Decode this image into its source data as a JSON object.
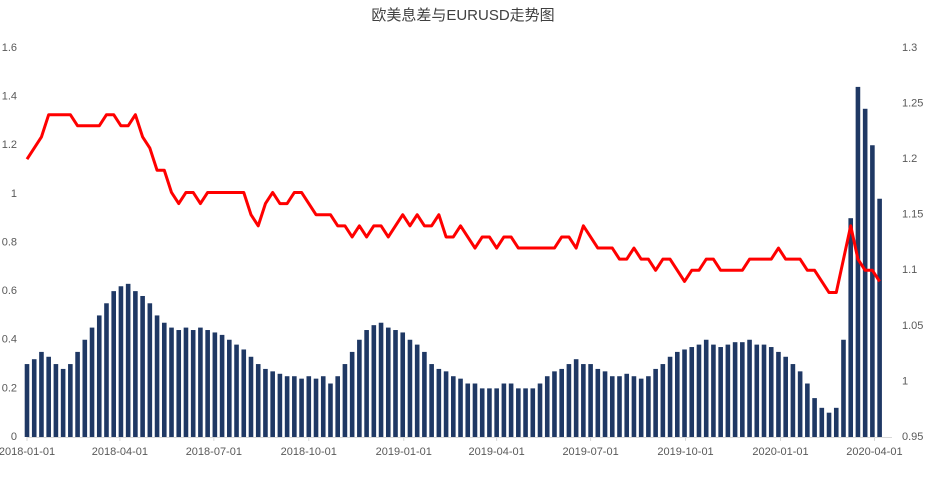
{
  "chart_data": {
    "type": "bar-line",
    "title": "欧美息差与EURUSD走势图",
    "x": [
      "2018-01-01",
      "2018-01-08",
      "2018-01-15",
      "2018-01-22",
      "2018-01-29",
      "2018-02-05",
      "2018-02-12",
      "2018-02-19",
      "2018-02-26",
      "2018-03-05",
      "2018-03-12",
      "2018-03-19",
      "2018-03-26",
      "2018-04-02",
      "2018-04-09",
      "2018-04-16",
      "2018-04-23",
      "2018-04-30",
      "2018-05-07",
      "2018-05-14",
      "2018-05-21",
      "2018-05-28",
      "2018-06-04",
      "2018-06-11",
      "2018-06-18",
      "2018-06-25",
      "2018-07-02",
      "2018-07-09",
      "2018-07-16",
      "2018-07-23",
      "2018-07-30",
      "2018-08-06",
      "2018-08-13",
      "2018-08-20",
      "2018-08-27",
      "2018-09-03",
      "2018-09-10",
      "2018-09-17",
      "2018-09-24",
      "2018-10-01",
      "2018-10-08",
      "2018-10-15",
      "2018-10-22",
      "2018-10-29",
      "2018-11-05",
      "2018-11-12",
      "2018-11-19",
      "2018-11-26",
      "2018-12-03",
      "2018-12-10",
      "2018-12-17",
      "2018-12-24",
      "2018-12-31",
      "2019-01-07",
      "2019-01-14",
      "2019-01-21",
      "2019-01-28",
      "2019-02-04",
      "2019-02-11",
      "2019-02-18",
      "2019-02-25",
      "2019-03-04",
      "2019-03-11",
      "2019-03-18",
      "2019-03-25",
      "2019-04-01",
      "2019-04-08",
      "2019-04-15",
      "2019-04-22",
      "2019-04-29",
      "2019-05-06",
      "2019-05-13",
      "2019-05-20",
      "2019-05-27",
      "2019-06-03",
      "2019-06-10",
      "2019-06-17",
      "2019-06-24",
      "2019-07-01",
      "2019-07-08",
      "2019-07-15",
      "2019-07-22",
      "2019-07-29",
      "2019-08-05",
      "2019-08-12",
      "2019-08-19",
      "2019-08-26",
      "2019-09-02",
      "2019-09-09",
      "2019-09-16",
      "2019-09-23",
      "2019-09-30",
      "2019-10-07",
      "2019-10-14",
      "2019-10-21",
      "2019-10-28",
      "2019-11-04",
      "2019-11-11",
      "2019-11-18",
      "2019-11-25",
      "2019-12-02",
      "2019-12-09",
      "2019-12-16",
      "2019-12-23",
      "2019-12-30",
      "2020-01-06",
      "2020-01-13",
      "2020-01-20",
      "2020-01-27",
      "2020-02-03",
      "2020-02-10",
      "2020-02-17",
      "2020-02-24",
      "2020-03-02",
      "2020-03-09",
      "2020-03-16",
      "2020-03-23",
      "2020-03-30",
      "2020-04-06"
    ],
    "series": [
      {
        "color": "#1f3864",
        "axis": "y",
        "values": [
          0.3,
          0.32,
          0.35,
          0.33,
          0.3,
          0.28,
          0.3,
          0.35,
          0.4,
          0.45,
          0.5,
          0.55,
          0.6,
          0.62,
          0.63,
          0.6,
          0.58,
          0.55,
          0.5,
          0.47,
          0.45,
          0.44,
          0.45,
          0.44,
          0.45,
          0.44,
          0.43,
          0.42,
          0.4,
          0.38,
          0.36,
          0.33,
          0.3,
          0.28,
          0.27,
          0.26,
          0.25,
          0.25,
          0.24,
          0.25,
          0.24,
          0.25,
          0.22,
          0.25,
          0.3,
          0.35,
          0.4,
          0.44,
          0.46,
          0.47,
          0.45,
          0.44,
          0.43,
          0.4,
          0.38,
          0.35,
          0.3,
          0.28,
          0.27,
          0.25,
          0.24,
          0.22,
          0.22,
          0.2,
          0.2,
          0.2,
          0.22,
          0.22,
          0.2,
          0.2,
          0.2,
          0.22,
          0.25,
          0.27,
          0.28,
          0.3,
          0.32,
          0.3,
          0.3,
          0.28,
          0.27,
          0.25,
          0.25,
          0.26,
          0.25,
          0.24,
          0.25,
          0.28,
          0.3,
          0.33,
          0.35,
          0.36,
          0.37,
          0.38,
          0.4,
          0.38,
          0.37,
          0.38,
          0.39,
          0.39,
          0.4,
          0.38,
          0.38,
          0.37,
          0.35,
          0.33,
          0.3,
          0.27,
          0.22,
          0.16,
          0.12,
          0.1,
          0.12,
          0.4,
          0.9,
          1.44,
          1.35,
          1.2,
          0.98
        ]
      },
      {
        "color": "#ff0000",
        "axis": "y2",
        "values": [
          1.2,
          1.21,
          1.22,
          1.24,
          1.24,
          1.24,
          1.24,
          1.23,
          1.23,
          1.23,
          1.23,
          1.24,
          1.24,
          1.23,
          1.23,
          1.24,
          1.22,
          1.21,
          1.19,
          1.19,
          1.17,
          1.16,
          1.17,
          1.17,
          1.16,
          1.17,
          1.17,
          1.17,
          1.17,
          1.17,
          1.17,
          1.15,
          1.14,
          1.16,
          1.17,
          1.16,
          1.16,
          1.17,
          1.17,
          1.16,
          1.15,
          1.15,
          1.15,
          1.14,
          1.14,
          1.13,
          1.14,
          1.13,
          1.14,
          1.14,
          1.13,
          1.14,
          1.15,
          1.14,
          1.15,
          1.14,
          1.14,
          1.15,
          1.13,
          1.13,
          1.14,
          1.13,
          1.12,
          1.13,
          1.13,
          1.12,
          1.13,
          1.13,
          1.12,
          1.12,
          1.12,
          1.12,
          1.12,
          1.12,
          1.13,
          1.13,
          1.12,
          1.14,
          1.13,
          1.12,
          1.12,
          1.12,
          1.11,
          1.11,
          1.12,
          1.11,
          1.11,
          1.1,
          1.11,
          1.11,
          1.1,
          1.09,
          1.1,
          1.1,
          1.11,
          1.11,
          1.1,
          1.1,
          1.1,
          1.1,
          1.11,
          1.11,
          1.11,
          1.11,
          1.12,
          1.11,
          1.11,
          1.11,
          1.1,
          1.1,
          1.09,
          1.08,
          1.08,
          1.11,
          1.14,
          1.11,
          1.1,
          1.1,
          1.09
        ]
      }
    ],
    "xlim": [
      "2018-01-01",
      "2020-04-18"
    ],
    "xticks": [
      "2018-01-01",
      "2018-04-01",
      "2018-07-01",
      "2018-10-01",
      "2019-01-01",
      "2019-04-01",
      "2019-07-01",
      "2019-10-01",
      "2020-01-01",
      "2020-04-01"
    ],
    "ylim": [
      0,
      1.6
    ],
    "yticks": [
      0,
      0.2,
      0.4,
      0.6,
      0.8,
      1,
      1.2,
      1.4,
      1.6
    ],
    "y2lim": [
      0.95,
      1.3
    ],
    "y2ticks": [
      0.95,
      1,
      1.05,
      1.1,
      1.15,
      1.2,
      1.25,
      1.3
    ],
    "grid": false
  }
}
